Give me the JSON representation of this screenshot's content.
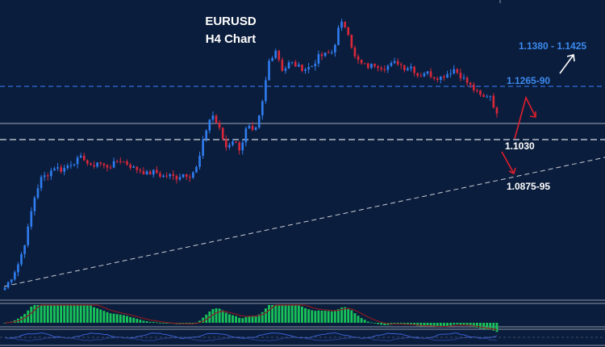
{
  "chart_data": {
    "type": "candlestick",
    "title": "EURUSD",
    "subtitle": "H4 Chart",
    "colors": {
      "background": "#0b1d3c",
      "bull": "#2f7df0",
      "bear": "#d9273a",
      "resistance_line": "#2f6fd8",
      "support_line": "#d7dbe3",
      "trendline": "#c8ccd6",
      "macd_hist": "#18c25a",
      "macd_signal": "#8a1a22",
      "osc_line": "#3a5fd0",
      "up_arrow": "#ffffff",
      "down_arrow": "#e01e2c",
      "label_blue": "#3b8af0",
      "label_white": "#ffffff"
    },
    "price_path": [
      1.0495,
      1.054,
      1.06,
      1.07,
      1.085,
      1.094,
      1.096,
      1.099,
      1.0975,
      1.1,
      1.1015,
      1.103,
      1.0985,
      1.101,
      1.099,
      1.0995,
      1.102,
      1.1005,
      1.0985,
      1.0975,
      1.096,
      1.097,
      1.095,
      1.0955,
      1.0945,
      1.096,
      1.0955,
      1.099,
      1.112,
      1.121,
      1.115,
      1.107,
      1.11,
      1.106,
      1.116,
      1.112,
      1.123,
      1.142,
      1.147,
      1.138,
      1.142,
      1.14,
      1.139,
      1.14,
      1.144,
      1.145,
      1.146,
      1.158,
      1.156,
      1.144,
      1.141,
      1.14,
      1.141,
      1.1395,
      1.1405,
      1.142,
      1.1395,
      1.14,
      1.136,
      1.138,
      1.136,
      1.1355,
      1.137,
      1.139,
      1.136,
      1.133,
      1.13,
      1.127,
      1.129,
      1.12
    ],
    "levels": [
      {
        "label": "1.1380 - 1.1425",
        "value": 1.14,
        "kind": "target",
        "color": "label_blue"
      },
      {
        "label": "1.1265-90",
        "value": 1.128,
        "kind": "resistance",
        "color": "label_blue"
      },
      {
        "label": "1.1030",
        "value": 1.103,
        "kind": "support",
        "color": "label_white"
      },
      {
        "label": "1.0875-95",
        "value": 1.0885,
        "kind": "support",
        "color": "label_white"
      }
    ],
    "horizontal_lines": [
      {
        "value": 1.128,
        "style": "dashed",
        "color": "resistance_line"
      },
      {
        "value": 1.1195,
        "style": "solid",
        "color": "support_line"
      },
      {
        "value": 1.113,
        "style": "dashed",
        "color": "support_line"
      }
    ],
    "trendline": {
      "from_value": 1.049,
      "to_value": 1.096,
      "style": "dashed"
    },
    "indicators": [
      "macd_histogram",
      "oscillator"
    ],
    "grid": false,
    "legend": "none"
  }
}
